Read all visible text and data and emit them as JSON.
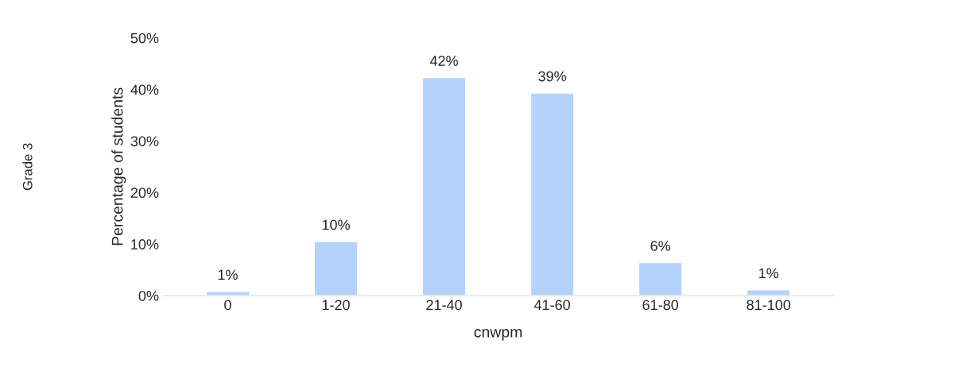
{
  "chart_data": {
    "type": "bar",
    "xlabel": "cnwpm",
    "ylabel": "Percentage of students",
    "annotations": [
      "Grade 3"
    ],
    "categories": [
      "0",
      "1-20",
      "21-40",
      "41-60",
      "61-80",
      "81-100"
    ],
    "values": [
      0.8,
      10.5,
      42.3,
      39.3,
      6.4,
      1.1
    ],
    "value_labels": [
      "1%",
      "10%",
      "42%",
      "39%",
      "6%",
      "1%"
    ],
    "color": "#b4d3fc",
    "ylim": [
      0,
      50
    ],
    "yticks": [
      {
        "value": 0,
        "label": "0%"
      },
      {
        "value": 10,
        "label": "10%"
      },
      {
        "value": 20,
        "label": "20%"
      },
      {
        "value": 30,
        "label": "30%"
      },
      {
        "value": 40,
        "label": "40%"
      },
      {
        "value": 50,
        "label": "50%"
      }
    ],
    "grid": false,
    "legend": false
  }
}
